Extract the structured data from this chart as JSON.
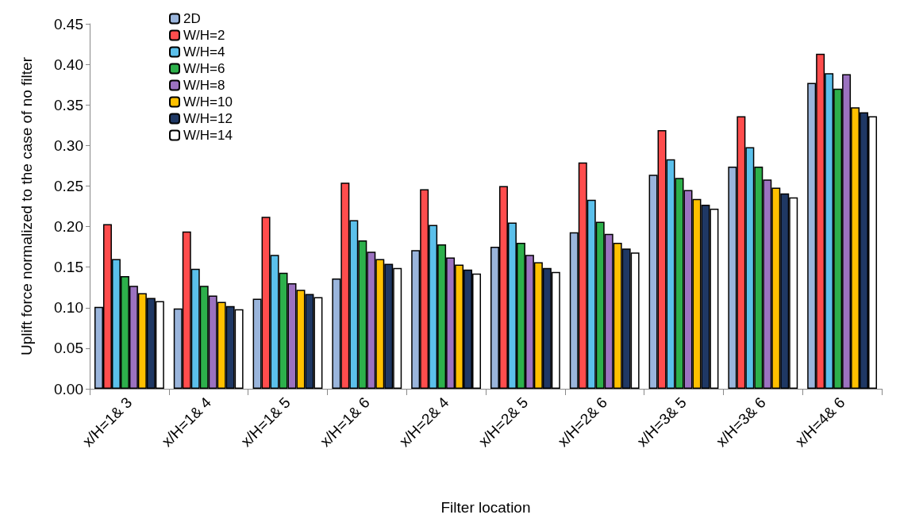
{
  "chart_data": {
    "type": "bar",
    "xlabel": "Filter location",
    "ylabel": "Uplift force normalized to the case of no filter",
    "categories": [
      "x/H=1& 3",
      "x/H=1& 4",
      "x/H=1& 5",
      "x/H=1& 6",
      "x/H=2& 4",
      "x/H=2& 5",
      "x/H=2& 6",
      "x/H=3& 5",
      "x/H=3& 6",
      "x/H=4& 6"
    ],
    "series": [
      {
        "name": "2D",
        "color": "#9ab5dc",
        "values": [
          0.101,
          0.099,
          0.111,
          0.136,
          0.171,
          0.175,
          0.193,
          0.264,
          0.274,
          0.377
        ]
      },
      {
        "name": "W/H=2",
        "color": "#ff4d4d",
        "values": [
          0.203,
          0.194,
          0.212,
          0.254,
          0.246,
          0.25,
          0.279,
          0.319,
          0.336,
          0.413
        ]
      },
      {
        "name": "W/H=4",
        "color": "#5bc0eb",
        "values": [
          0.16,
          0.148,
          0.165,
          0.208,
          0.202,
          0.205,
          0.233,
          0.283,
          0.298,
          0.389
        ]
      },
      {
        "name": "W/H=6",
        "color": "#2db04b",
        "values": [
          0.139,
          0.127,
          0.143,
          0.183,
          0.178,
          0.18,
          0.206,
          0.26,
          0.274,
          0.37
        ]
      },
      {
        "name": "W/H=8",
        "color": "#9b72c0",
        "values": [
          0.127,
          0.115,
          0.13,
          0.169,
          0.162,
          0.165,
          0.191,
          0.245,
          0.258,
          0.388
        ]
      },
      {
        "name": "W/H=10",
        "color": "#ffc000",
        "values": [
          0.118,
          0.107,
          0.122,
          0.16,
          0.153,
          0.156,
          0.18,
          0.234,
          0.248,
          0.347
        ]
      },
      {
        "name": "W/H=12",
        "color": "#1f3864",
        "values": [
          0.112,
          0.102,
          0.117,
          0.154,
          0.147,
          0.149,
          0.173,
          0.227,
          0.241,
          0.341
        ]
      },
      {
        "name": "W/H=14",
        "color": "#ffffff",
        "values": [
          0.108,
          0.098,
          0.113,
          0.149,
          0.142,
          0.144,
          0.168,
          0.222,
          0.236,
          0.336
        ]
      }
    ],
    "ylim": [
      0,
      0.45
    ],
    "yticks": [
      {
        "value": 0,
        "label": "0.00"
      },
      {
        "value": 0.05,
        "label": "0.05"
      },
      {
        "value": 0.1,
        "label": "0.10"
      },
      {
        "value": 0.15,
        "label": "0.15"
      },
      {
        "value": 0.2,
        "label": "0.20"
      },
      {
        "value": 0.25,
        "label": "0.25"
      },
      {
        "value": 0.3,
        "label": "0.30"
      },
      {
        "value": 0.35,
        "label": "0.35"
      },
      {
        "value": 0.4,
        "label": "0.40"
      },
      {
        "value": 0.45,
        "label": "0.45"
      }
    ],
    "grid": false,
    "legend": "top left"
  }
}
